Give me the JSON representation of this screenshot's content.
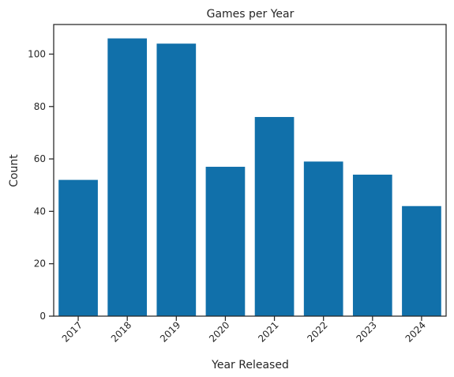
{
  "chart_data": {
    "type": "bar",
    "title": "Games per Year",
    "xlabel": "Year Released",
    "ylabel": "Count",
    "categories": [
      "2017",
      "2018",
      "2019",
      "2020",
      "2021",
      "2022",
      "2023",
      "2024"
    ],
    "values": [
      52,
      106,
      104,
      57,
      76,
      59,
      54,
      42
    ],
    "ylim": [
      0,
      111.3
    ],
    "yticks": [
      "0",
      "20",
      "40",
      "60",
      "80",
      "100"
    ],
    "bar_color": "#1170aa",
    "grid": false,
    "x_tick_rotation": "45 degrees"
  }
}
